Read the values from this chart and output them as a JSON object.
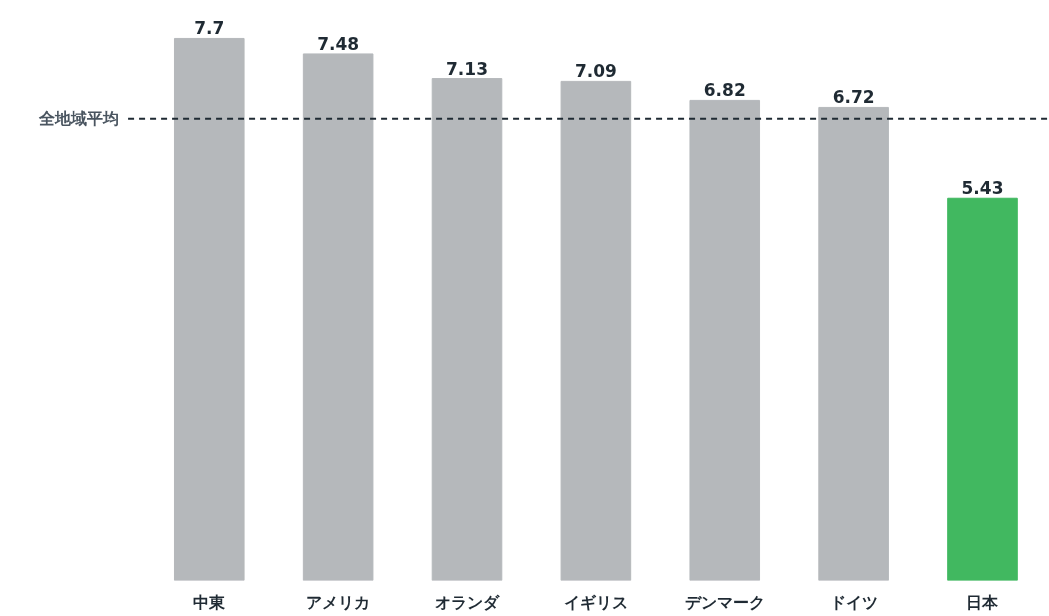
{
  "chart_data": {
    "type": "bar",
    "categories": [
      "中東",
      "アメリカ",
      "オランダ",
      "イギリス",
      "デンマーク",
      "ドイツ",
      "日本"
    ],
    "values": [
      7.7,
      7.48,
      7.13,
      7.09,
      6.82,
      6.72,
      5.43
    ],
    "colors": [
      "#b5b8bb",
      "#b5b8bb",
      "#b5b8bb",
      "#b5b8bb",
      "#b5b8bb",
      "#b5b8bb",
      "#41b860"
    ],
    "data_labels": true,
    "ref_lines": [
      {
        "axis": "y",
        "value": 6.56,
        "label": "全地域平均",
        "color": "#1f2a33",
        "line_style": "dashed"
      }
    ]
  }
}
